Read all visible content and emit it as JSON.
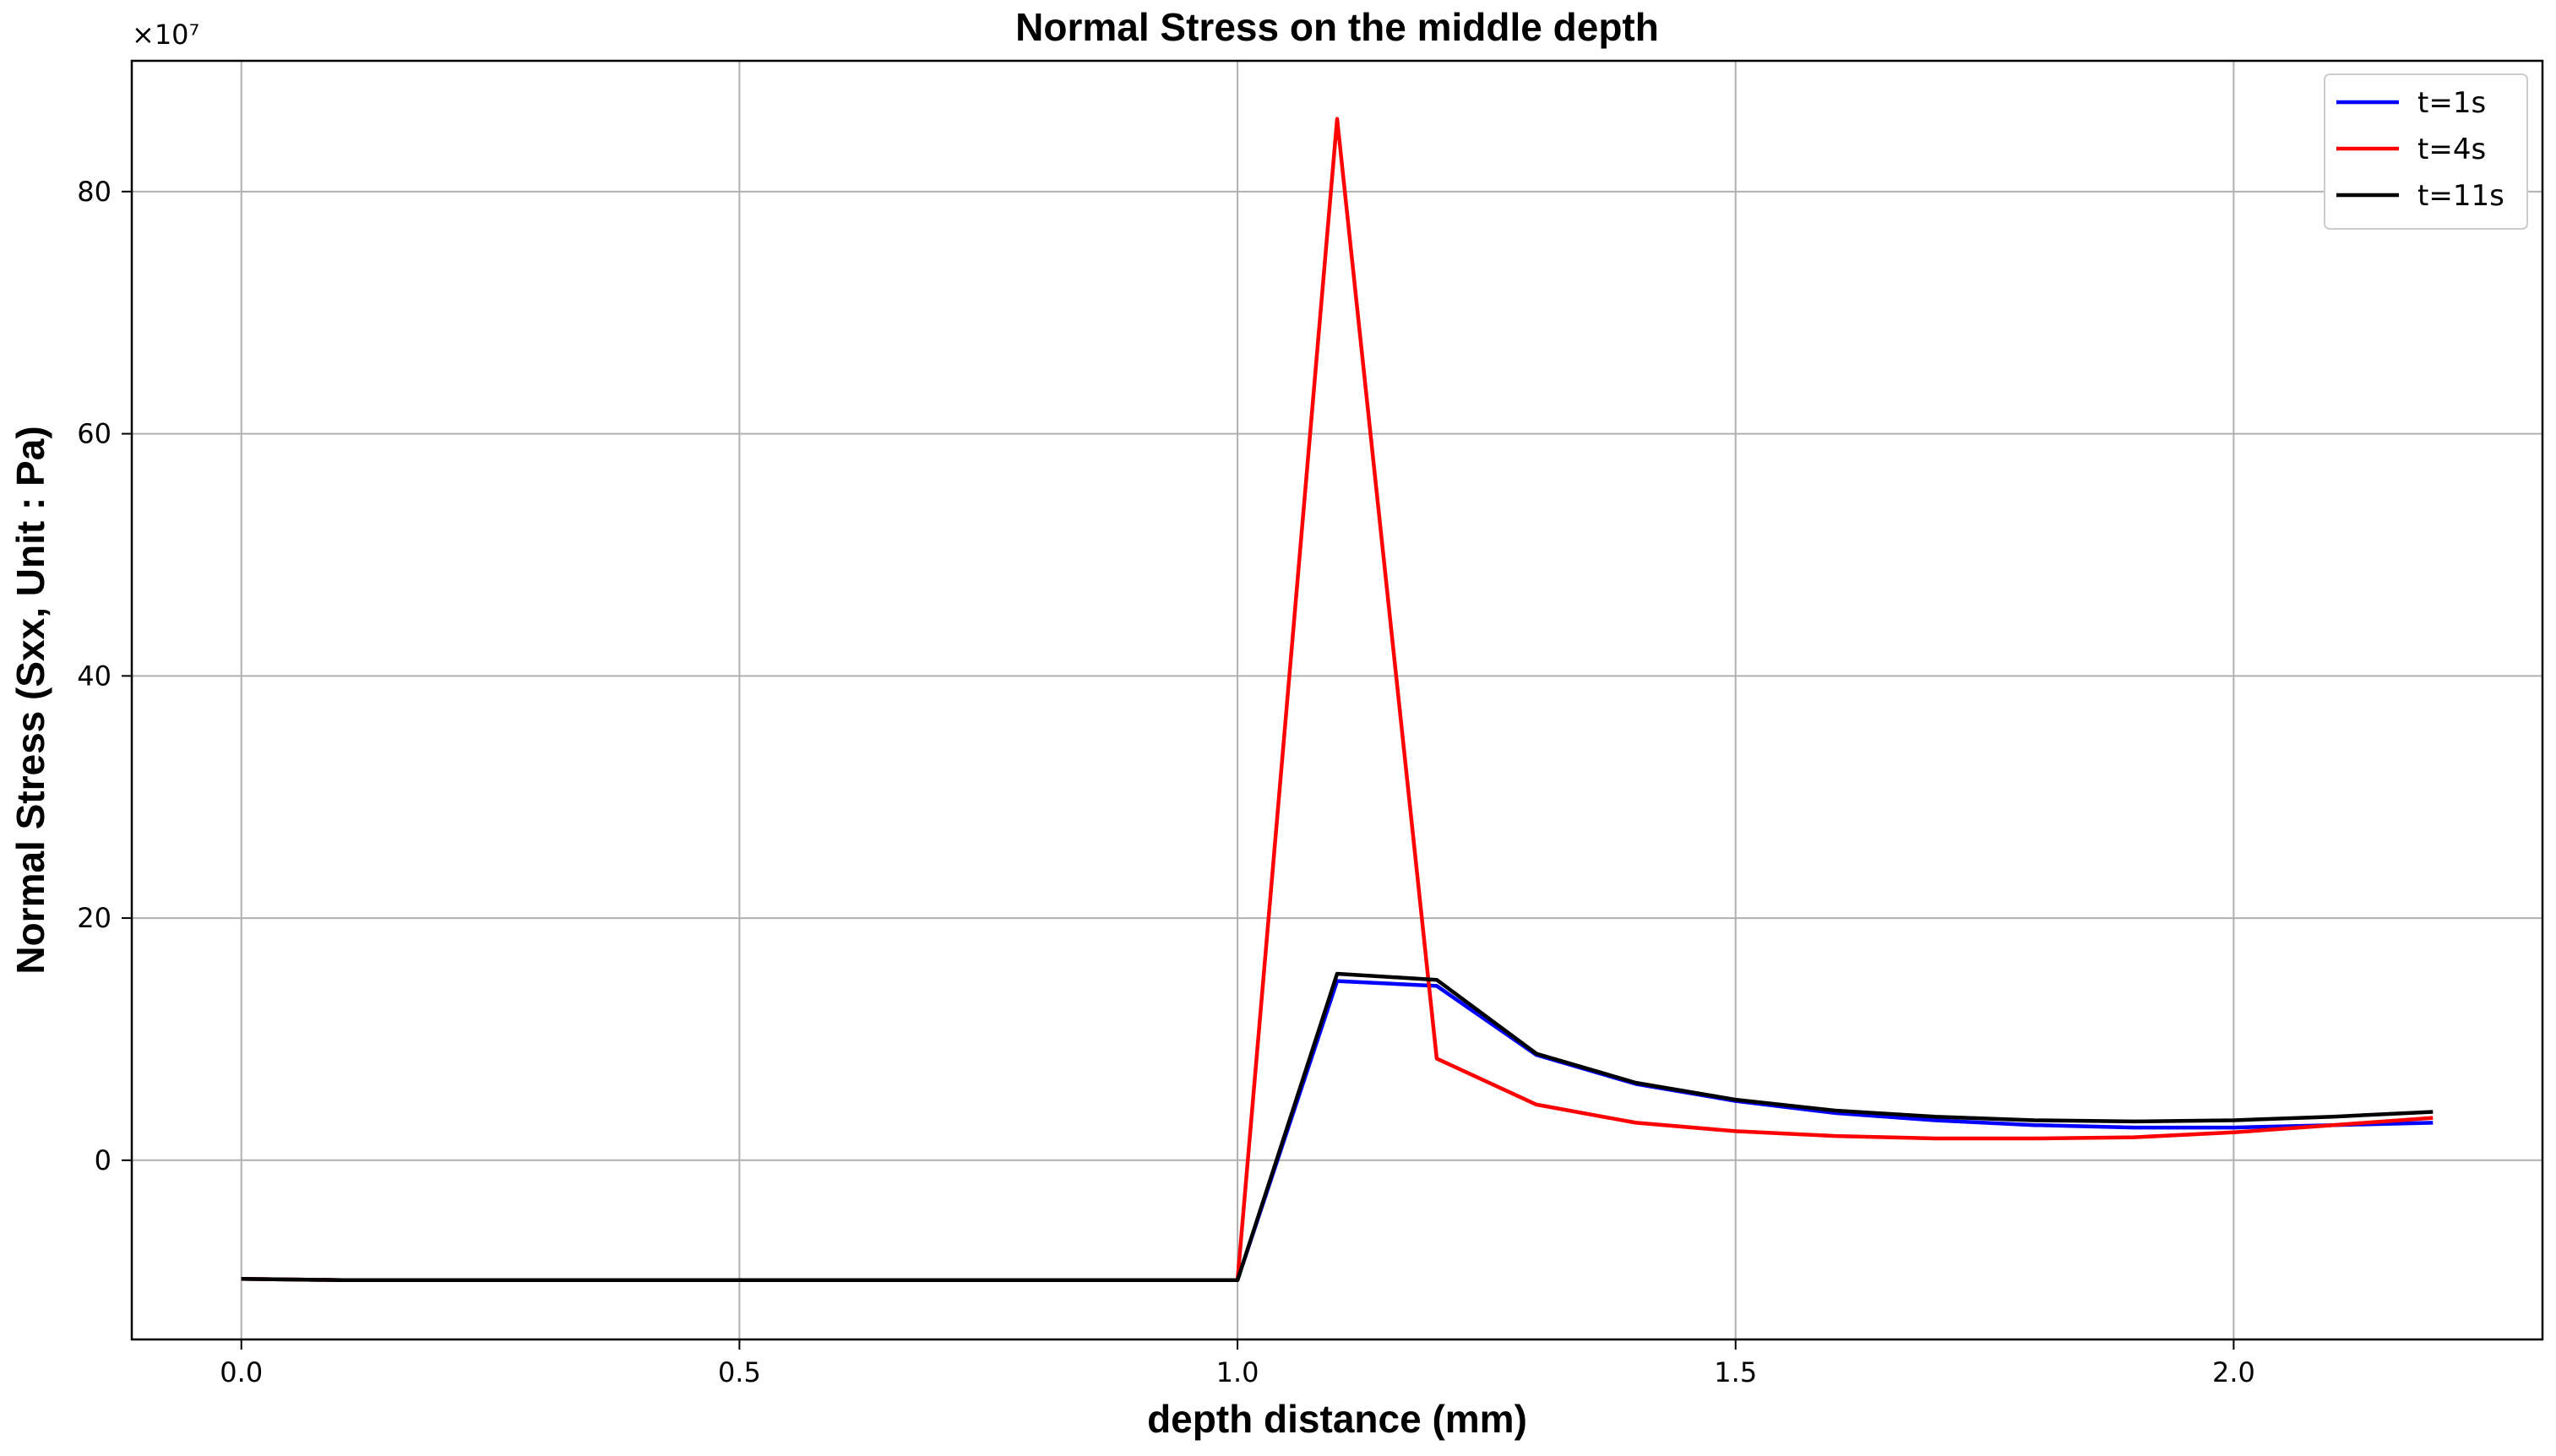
{
  "chart_data": {
    "type": "line",
    "title": "Normal Stress on the middle depth",
    "xlabel": "depth distance (mm)",
    "ylabel": "Normal Stress (Sxx, Unit : Pa)",
    "y_multiplier_label": "×10⁷",
    "xlim": [
      -0.11,
      2.31
    ],
    "ylim": [
      -14.8,
      90.8
    ],
    "x_ticks": [
      0.0,
      0.5,
      1.0,
      1.5,
      2.0
    ],
    "x_tick_labels": [
      "0.0",
      "0.5",
      "1.0",
      "1.5",
      "2.0"
    ],
    "y_ticks": [
      0,
      20,
      40,
      60,
      80
    ],
    "y_tick_labels": [
      "0",
      "20",
      "40",
      "60",
      "80"
    ],
    "grid": true,
    "legend_position": "top-right",
    "x": [
      0.0,
      0.1,
      0.2,
      0.3,
      0.4,
      0.5,
      0.6,
      0.7,
      0.8,
      0.9,
      1.0,
      1.1,
      1.2,
      1.3,
      1.4,
      1.5,
      1.6,
      1.7,
      1.8,
      1.9,
      2.0,
      2.1,
      2.2
    ],
    "series": [
      {
        "name": "t=1s",
        "color": "#0000ff",
        "values": [
          -9.8,
          -9.9,
          -9.9,
          -9.9,
          -9.9,
          -9.9,
          -9.9,
          -9.9,
          -9.9,
          -9.9,
          -9.9,
          14.8,
          14.4,
          8.7,
          6.3,
          4.9,
          3.9,
          3.3,
          2.9,
          2.7,
          2.7,
          2.9,
          3.1
        ]
      },
      {
        "name": "t=4s",
        "color": "#ff0000",
        "values": [
          -9.8,
          -9.9,
          -9.9,
          -9.9,
          -9.9,
          -9.9,
          -9.9,
          -9.9,
          -9.9,
          -9.9,
          -9.9,
          86.0,
          8.4,
          4.6,
          3.1,
          2.4,
          2.0,
          1.8,
          1.8,
          1.9,
          2.3,
          2.9,
          3.5
        ]
      },
      {
        "name": "t=11s",
        "color": "#000000",
        "values": [
          -9.8,
          -9.9,
          -9.9,
          -9.9,
          -9.9,
          -9.9,
          -9.9,
          -9.9,
          -9.9,
          -9.9,
          -9.9,
          15.4,
          14.9,
          8.8,
          6.4,
          5.0,
          4.1,
          3.6,
          3.3,
          3.2,
          3.3,
          3.6,
          4.0
        ]
      }
    ]
  }
}
